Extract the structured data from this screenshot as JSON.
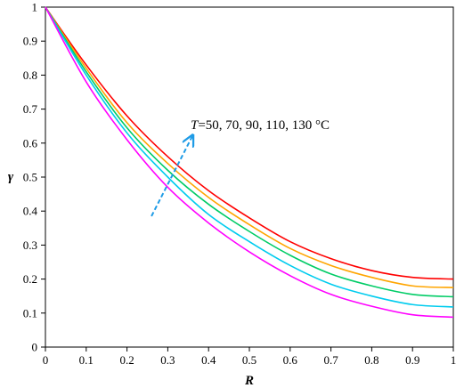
{
  "chart_data": {
    "type": "line",
    "title": "",
    "xlabel": "R",
    "ylabel": "γ",
    "xlim": [
      0,
      1
    ],
    "ylim": [
      0,
      1
    ],
    "x_ticks": [
      "0",
      "0.1",
      "0.2",
      "0.3",
      "0.4",
      "0.5",
      "0.6",
      "0.7",
      "0.8",
      "0.9",
      "1"
    ],
    "y_ticks": [
      "0",
      "0.1",
      "0.2",
      "0.3",
      "0.4",
      "0.5",
      "0.6",
      "0.7",
      "0.8",
      "0.9",
      "1"
    ],
    "grid": false,
    "legend": "none",
    "x": [
      0,
      0.1,
      0.2,
      0.3,
      0.4,
      0.5,
      0.6,
      0.7,
      0.8,
      0.9,
      1.0
    ],
    "series": [
      {
        "color": "#ff0000",
        "values": [
          1.0,
          0.83,
          0.68,
          0.56,
          0.46,
          0.38,
          0.31,
          0.26,
          0.225,
          0.205,
          0.2
        ]
      },
      {
        "color": "#ffa500",
        "values": [
          1.0,
          0.82,
          0.66,
          0.54,
          0.44,
          0.36,
          0.29,
          0.24,
          0.205,
          0.18,
          0.175
        ]
      },
      {
        "color": "#00cc66",
        "values": [
          1.0,
          0.81,
          0.645,
          0.52,
          0.42,
          0.34,
          0.27,
          0.215,
          0.18,
          0.155,
          0.148
        ]
      },
      {
        "color": "#00ccee",
        "values": [
          1.0,
          0.8,
          0.63,
          0.5,
          0.39,
          0.31,
          0.24,
          0.185,
          0.15,
          0.125,
          0.118
        ]
      },
      {
        "color": "#ff00ff",
        "values": [
          1.0,
          0.78,
          0.61,
          0.47,
          0.365,
          0.28,
          0.21,
          0.155,
          0.12,
          0.095,
          0.088
        ]
      }
    ],
    "annotations": [
      {
        "prefix": "T",
        "text": "=50, 70, 90, 110, 130 °C",
        "arrow": {
          "style": "dashed",
          "color": "#1e9be6",
          "from": [
            0.26,
            0.385
          ],
          "to": [
            0.36,
            0.62
          ]
        }
      }
    ]
  }
}
